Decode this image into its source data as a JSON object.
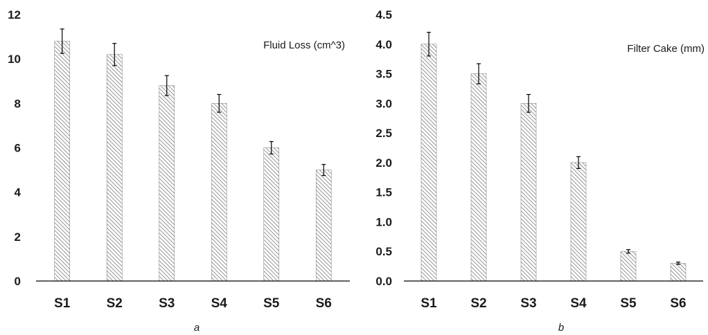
{
  "colors": {
    "bar_stroke": "#8a8a8a",
    "hatch": "#7a7a7a",
    "axis": "#000000",
    "errorbar": "#000000"
  },
  "chart_data": [
    {
      "type": "bar",
      "panel_label": "a",
      "title": "Fluid Loss (cm^3)",
      "xlabel": "",
      "ylabel": "",
      "categories": [
        "S1",
        "S2",
        "S3",
        "S4",
        "S5",
        "S6"
      ],
      "values": [
        10.8,
        10.2,
        8.8,
        8.0,
        6.0,
        5.0
      ],
      "error": [
        0.55,
        0.5,
        0.45,
        0.4,
        0.28,
        0.25
      ],
      "ylim": [
        0,
        12
      ],
      "yticks": [
        0,
        2,
        4,
        6,
        8,
        10,
        12
      ],
      "ytick_labels": [
        "0",
        "2",
        "4",
        "6",
        "8",
        "10",
        "12"
      ],
      "grid": false,
      "pattern": "diagonal-hatch"
    },
    {
      "type": "bar",
      "panel_label": "b",
      "title": "Filter Cake (mm)",
      "xlabel": "",
      "ylabel": "",
      "categories": [
        "S1",
        "S2",
        "S3",
        "S4",
        "S5",
        "S6"
      ],
      "values": [
        4.0,
        3.5,
        3.0,
        2.0,
        0.5,
        0.3
      ],
      "error": [
        0.2,
        0.17,
        0.15,
        0.1,
        0.03,
        0.02
      ],
      "ylim": [
        0,
        4.5
      ],
      "yticks": [
        0,
        0.5,
        1.0,
        1.5,
        2.0,
        2.5,
        3.0,
        3.5,
        4.0,
        4.5
      ],
      "ytick_labels": [
        "0.0",
        "0.5",
        "1.0",
        "1.5",
        "2.0",
        "2.5",
        "3.0",
        "3.5",
        "4.0",
        "4.5"
      ],
      "grid": false,
      "pattern": "diagonal-hatch"
    }
  ]
}
